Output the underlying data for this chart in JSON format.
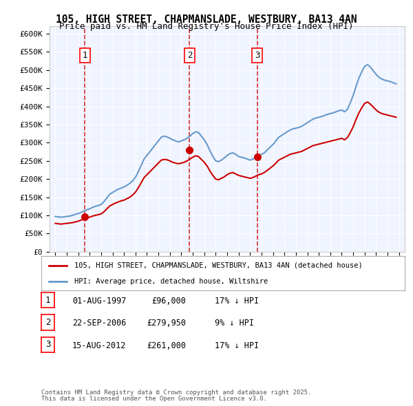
{
  "title_line1": "105, HIGH STREET, CHAPMANSLADE, WESTBURY, BA13 4AN",
  "title_line2": "Price paid vs. HM Land Registry's House Price Index (HPI)",
  "ylabel": "",
  "xlabel": "",
  "ylim": [
    0,
    620000
  ],
  "yticks": [
    0,
    50000,
    100000,
    150000,
    200000,
    250000,
    300000,
    350000,
    400000,
    450000,
    500000,
    550000,
    600000
  ],
  "ytick_labels": [
    "£0",
    "£50K",
    "£100K",
    "£150K",
    "£200K",
    "£250K",
    "£300K",
    "£350K",
    "£400K",
    "£450K",
    "£500K",
    "£550K",
    "£600K"
  ],
  "background_color": "#f0f4ff",
  "plot_bg_color": "#f0f4ff",
  "grid_color": "#ffffff",
  "sale_color": "#cc0000",
  "hpi_color": "#6699cc",
  "sale_label": "105, HIGH STREET, CHAPMANSLADE, WESTBURY, BA13 4AN (detached house)",
  "hpi_label": "HPI: Average price, detached house, Wiltshire",
  "transaction_dates": [
    "1997-08-01",
    "2006-09-22",
    "2012-08-15"
  ],
  "transaction_prices": [
    96000,
    279950,
    261000
  ],
  "transaction_labels": [
    "1",
    "2",
    "3"
  ],
  "transaction_pct": [
    "17% ↓ HPI",
    "9% ↓ HPI",
    "17% ↓ HPI"
  ],
  "transaction_date_strs": [
    "01-AUG-1997",
    "22-SEP-2006",
    "15-AUG-2012"
  ],
  "transaction_price_strs": [
    "£96,000",
    "£279,950",
    "£261,000"
  ],
  "footer_line1": "Contains HM Land Registry data © Crown copyright and database right 2025.",
  "footer_line2": "This data is licensed under the Open Government Licence v3.0.",
  "hpi_data": {
    "dates": [
      1995.0,
      1995.25,
      1995.5,
      1995.75,
      1996.0,
      1996.25,
      1996.5,
      1996.75,
      1997.0,
      1997.25,
      1997.5,
      1997.75,
      1998.0,
      1998.25,
      1998.5,
      1998.75,
      1999.0,
      1999.25,
      1999.5,
      1999.75,
      2000.0,
      2000.25,
      2000.5,
      2000.75,
      2001.0,
      2001.25,
      2001.5,
      2001.75,
      2002.0,
      2002.25,
      2002.5,
      2002.75,
      2003.0,
      2003.25,
      2003.5,
      2003.75,
      2004.0,
      2004.25,
      2004.5,
      2004.75,
      2005.0,
      2005.25,
      2005.5,
      2005.75,
      2006.0,
      2006.25,
      2006.5,
      2006.75,
      2007.0,
      2007.25,
      2007.5,
      2007.75,
      2008.0,
      2008.25,
      2008.5,
      2008.75,
      2009.0,
      2009.25,
      2009.5,
      2009.75,
      2010.0,
      2010.25,
      2010.5,
      2010.75,
      2011.0,
      2011.25,
      2011.5,
      2011.75,
      2012.0,
      2012.25,
      2012.5,
      2012.75,
      2013.0,
      2013.25,
      2013.5,
      2013.75,
      2014.0,
      2014.25,
      2014.5,
      2014.75,
      2015.0,
      2015.25,
      2015.5,
      2015.75,
      2016.0,
      2016.25,
      2016.5,
      2016.75,
      2017.0,
      2017.25,
      2017.5,
      2017.75,
      2018.0,
      2018.25,
      2018.5,
      2018.75,
      2019.0,
      2019.25,
      2019.5,
      2019.75,
      2020.0,
      2020.25,
      2020.5,
      2020.75,
      2021.0,
      2021.25,
      2021.5,
      2021.75,
      2022.0,
      2022.25,
      2022.5,
      2022.75,
      2023.0,
      2023.25,
      2023.5,
      2023.75,
      2024.0,
      2024.25,
      2024.5,
      2024.75
    ],
    "values": [
      97000,
      96000,
      95000,
      96000,
      97000,
      98000,
      100000,
      103000,
      105000,
      108000,
      112000,
      115000,
      118000,
      122000,
      125000,
      127000,
      130000,
      138000,
      148000,
      158000,
      163000,
      168000,
      172000,
      175000,
      178000,
      183000,
      188000,
      195000,
      205000,
      220000,
      238000,
      255000,
      265000,
      275000,
      285000,
      295000,
      305000,
      315000,
      318000,
      316000,
      312000,
      308000,
      305000,
      302000,
      305000,
      308000,
      312000,
      318000,
      325000,
      330000,
      328000,
      318000,
      308000,
      295000,
      278000,
      262000,
      250000,
      248000,
      252000,
      258000,
      265000,
      270000,
      272000,
      268000,
      262000,
      260000,
      258000,
      255000,
      252000,
      255000,
      260000,
      265000,
      268000,
      272000,
      280000,
      288000,
      295000,
      305000,
      315000,
      320000,
      325000,
      330000,
      335000,
      338000,
      340000,
      342000,
      345000,
      350000,
      355000,
      360000,
      365000,
      368000,
      370000,
      372000,
      375000,
      378000,
      380000,
      382000,
      385000,
      388000,
      390000,
      385000,
      392000,
      410000,
      430000,
      455000,
      478000,
      495000,
      510000,
      515000,
      508000,
      498000,
      488000,
      480000,
      475000,
      472000,
      470000,
      468000,
      465000,
      462000
    ]
  },
  "sale_hpi_data": {
    "dates": [
      1995.0,
      1995.25,
      1995.5,
      1995.75,
      1996.0,
      1996.25,
      1996.5,
      1996.75,
      1997.0,
      1997.25,
      1997.5,
      1997.75,
      1998.0,
      1998.25,
      1998.5,
      1998.75,
      1999.0,
      1999.25,
      1999.5,
      1999.75,
      2000.0,
      2000.25,
      2000.5,
      2000.75,
      2001.0,
      2001.25,
      2001.5,
      2001.75,
      2002.0,
      2002.25,
      2002.5,
      2002.75,
      2003.0,
      2003.25,
      2003.5,
      2003.75,
      2004.0,
      2004.25,
      2004.5,
      2004.75,
      2005.0,
      2005.25,
      2005.5,
      2005.75,
      2006.0,
      2006.25,
      2006.5,
      2006.75,
      2007.0,
      2007.25,
      2007.5,
      2007.75,
      2008.0,
      2008.25,
      2008.5,
      2008.75,
      2009.0,
      2009.25,
      2009.5,
      2009.75,
      2010.0,
      2010.25,
      2010.5,
      2010.75,
      2011.0,
      2011.25,
      2011.5,
      2011.75,
      2012.0,
      2012.25,
      2012.5,
      2012.75,
      2013.0,
      2013.25,
      2013.5,
      2013.75,
      2014.0,
      2014.25,
      2014.5,
      2014.75,
      2015.0,
      2015.25,
      2015.5,
      2015.75,
      2016.0,
      2016.25,
      2016.5,
      2016.75,
      2017.0,
      2017.25,
      2017.5,
      2017.75,
      2018.0,
      2018.25,
      2018.5,
      2018.75,
      2019.0,
      2019.25,
      2019.5,
      2019.75,
      2020.0,
      2020.25,
      2020.5,
      2020.75,
      2021.0,
      2021.25,
      2021.5,
      2021.75,
      2022.0,
      2022.25,
      2022.5,
      2022.75,
      2023.0,
      2023.25,
      2023.5,
      2023.75,
      2024.0,
      2024.25,
      2024.5,
      2024.75
    ],
    "values": [
      78000,
      77000,
      76000,
      77000,
      78000,
      79000,
      80000,
      82000,
      84000,
      87000,
      90000,
      93000,
      95000,
      98000,
      100000,
      102000,
      104000,
      110000,
      118000,
      126000,
      130000,
      134000,
      137000,
      140000,
      142000,
      146000,
      150000,
      156000,
      164000,
      176000,
      190000,
      204000,
      212000,
      220000,
      228000,
      236000,
      244000,
      252000,
      254000,
      253000,
      250000,
      246000,
      244000,
      242000,
      244000,
      246000,
      250000,
      255000,
      260000,
      264000,
      262000,
      254000,
      246000,
      236000,
      222000,
      210000,
      200000,
      198000,
      202000,
      206000,
      212000,
      216000,
      218000,
      214000,
      210000,
      208000,
      206000,
      204000,
      202000,
      204000,
      208000,
      212000,
      214000,
      218000,
      224000,
      230000,
      236000,
      244000,
      252000,
      256000,
      260000,
      264000,
      268000,
      270000,
      272000,
      274000,
      276000,
      280000,
      284000,
      288000,
      292000,
      294000,
      296000,
      298000,
      300000,
      302000,
      304000,
      306000,
      308000,
      310000,
      312000,
      308000,
      314000,
      328000,
      344000,
      364000,
      382000,
      396000,
      408000,
      412000,
      406000,
      398000,
      390000,
      384000,
      380000,
      378000,
      376000,
      374000,
      372000,
      370000
    ]
  }
}
